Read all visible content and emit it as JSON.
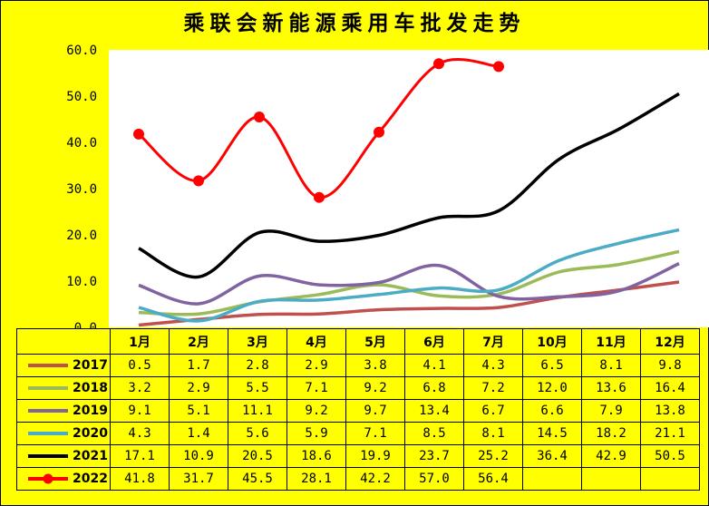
{
  "chart_data": {
    "type": "line",
    "title": "乘联会新能源乘用车批发走势",
    "categories": [
      "1月",
      "2月",
      "3月",
      "4月",
      "5月",
      "6月",
      "7月",
      "10月",
      "11月",
      "12月"
    ],
    "ylim": [
      0,
      60
    ],
    "yticks": [
      "0.0",
      "10.0",
      "20.0",
      "30.0",
      "40.0",
      "50.0",
      "60.0"
    ],
    "grid": false,
    "legend": "data-table",
    "series": [
      {
        "name": "2017",
        "color": "#c0504d",
        "values": [
          0.5,
          1.7,
          2.8,
          2.9,
          3.8,
          4.1,
          4.3,
          6.5,
          8.1,
          9.8
        ],
        "labels": [
          "0.5",
          "1.7",
          "2.8",
          "2.9",
          "3.8",
          "4.1",
          "4.3",
          "6.5",
          "8.1",
          "9.8"
        ]
      },
      {
        "name": "2018",
        "color": "#9bbb59",
        "values": [
          3.2,
          2.9,
          5.5,
          7.1,
          9.2,
          6.8,
          7.2,
          12.0,
          13.6,
          16.4
        ],
        "labels": [
          "3.2",
          "2.9",
          "5.5",
          "7.1",
          "9.2",
          "6.8",
          "7.2",
          "12.0",
          "13.6",
          "16.4"
        ]
      },
      {
        "name": "2019",
        "color": "#8064a2",
        "values": [
          9.1,
          5.1,
          11.1,
          9.2,
          9.7,
          13.4,
          6.7,
          6.6,
          7.9,
          13.8
        ],
        "labels": [
          "9.1",
          "5.1",
          "11.1",
          "9.2",
          "9.7",
          "13.4",
          "6.7",
          "6.6",
          "7.9",
          "13.8"
        ]
      },
      {
        "name": "2020",
        "color": "#4bacc6",
        "values": [
          4.3,
          1.4,
          5.6,
          5.9,
          7.1,
          8.5,
          8.1,
          14.5,
          18.2,
          21.1
        ],
        "labels": [
          "4.3",
          "1.4",
          "5.6",
          "5.9",
          "7.1",
          "8.5",
          "8.1",
          "14.5",
          "18.2",
          "21.1"
        ]
      },
      {
        "name": "2021",
        "color": "#000000",
        "values": [
          17.1,
          10.9,
          20.5,
          18.6,
          19.9,
          23.7,
          25.2,
          36.4,
          42.9,
          50.5
        ],
        "labels": [
          "17.1",
          "10.9",
          "20.5",
          "18.6",
          "19.9",
          "23.7",
          "25.2",
          "36.4",
          "42.9",
          "50.5"
        ]
      },
      {
        "name": "2022",
        "color": "#ff0000",
        "values": [
          41.8,
          31.7,
          45.5,
          28.1,
          42.2,
          57.0,
          56.4,
          null,
          null,
          null
        ],
        "labels": [
          "41.8",
          "31.7",
          "45.5",
          "28.1",
          "42.2",
          "57.0",
          "56.4",
          "",
          "",
          ""
        ]
      }
    ]
  }
}
